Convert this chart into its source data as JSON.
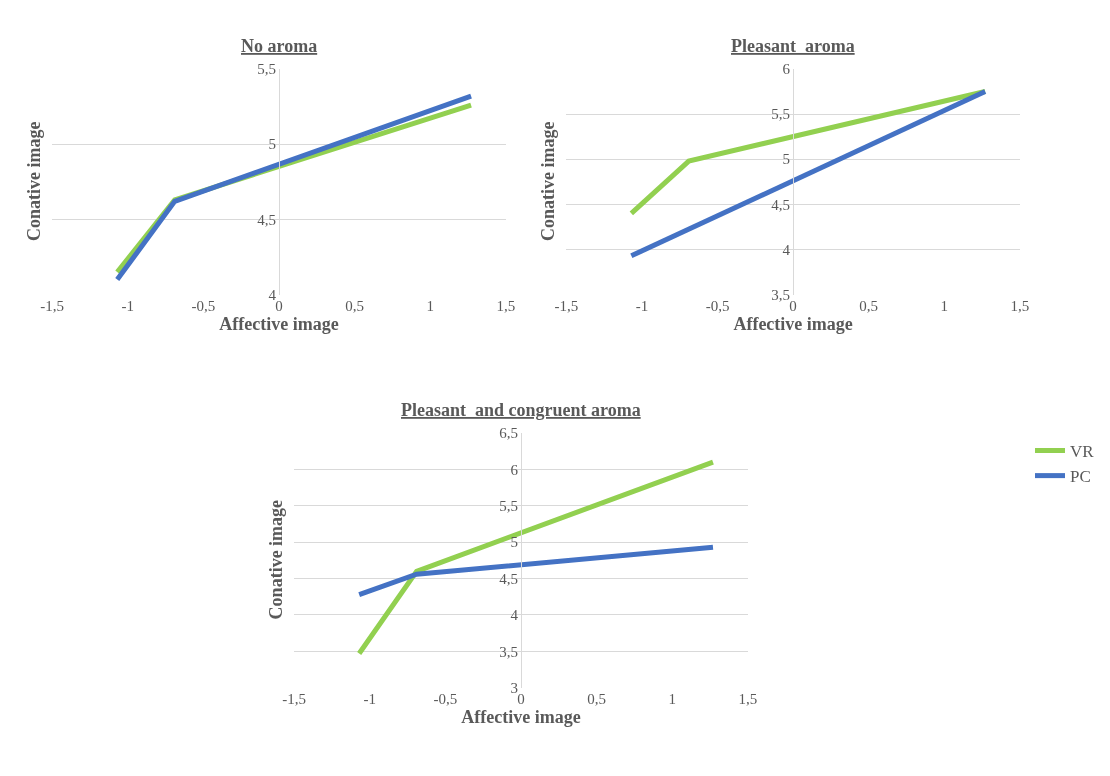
{
  "chart_data": [
    {
      "type": "line",
      "title": "No aroma",
      "xlabel": "Affective image",
      "ylabel": "Conative image",
      "grid": "y",
      "legend": false,
      "xlim": [
        -1.5,
        1.5
      ],
      "xticks": [
        {
          "value": -1.5,
          "label": "-1,5"
        },
        -1,
        {
          "value": -0.5,
          "label": "-0,5"
        },
        0,
        {
          "value": 0.5,
          "label": "0,5"
        },
        1,
        {
          "value": 1.5,
          "label": "1,5"
        }
      ],
      "ylim": [
        4,
        5.5
      ],
      "yticks": [
        4,
        {
          "value": 4.5,
          "label": "4,5"
        },
        5,
        {
          "value": 5.5,
          "label": "5,5"
        }
      ],
      "series": [
        {
          "color": "#92d050",
          "x": [
            -1.07,
            -0.69,
            1.27
          ],
          "values": [
            4.15,
            4.63,
            5.26
          ]
        },
        {
          "color": "#4472c4",
          "x": [
            -1.07,
            -0.69,
            1.27
          ],
          "values": [
            4.1,
            4.62,
            5.32
          ]
        }
      ]
    },
    {
      "type": "line",
      "title": "Pleasant  aroma",
      "xlabel": "Affective image",
      "ylabel": "Conative image",
      "grid": "y",
      "legend": false,
      "xlim": [
        -1.5,
        1.5
      ],
      "xticks": [
        {
          "value": -1.5,
          "label": "-1,5"
        },
        -1,
        {
          "value": -0.5,
          "label": "-0,5"
        },
        0,
        {
          "value": 0.5,
          "label": "0,5"
        },
        1,
        {
          "value": 1.5,
          "label": "1,5"
        }
      ],
      "ylim": [
        3.5,
        6
      ],
      "yticks": [
        {
          "value": 3.5,
          "label": "3,5"
        },
        4,
        {
          "value": 4.5,
          "label": "4,5"
        },
        5,
        {
          "value": 5.5,
          "label": "5,5"
        },
        6
      ],
      "series": [
        {
          "color": "#92d050",
          "x": [
            -1.07,
            -0.69,
            1.27
          ],
          "values": [
            4.4,
            4.98,
            5.75
          ]
        },
        {
          "color": "#4472c4",
          "x": [
            -1.07,
            1.27
          ],
          "values": [
            3.93,
            5.75
          ]
        }
      ]
    },
    {
      "type": "line",
      "title": "Pleasant  and congruent aroma",
      "xlabel": "Affective image",
      "ylabel": "Conative image",
      "grid": "y",
      "legend": "right",
      "xlim": [
        -1.5,
        1.5
      ],
      "xticks": [
        {
          "value": -1.5,
          "label": "-1,5"
        },
        -1,
        {
          "value": -0.5,
          "label": "-0,5"
        },
        0,
        {
          "value": 0.5,
          "label": "0,5"
        },
        1,
        {
          "value": 1.5,
          "label": "1,5"
        }
      ],
      "ylim": [
        3,
        6.5
      ],
      "yticks": [
        3,
        {
          "value": 3.5,
          "label": "3,5"
        },
        4,
        {
          "value": 4.5,
          "label": "4,5"
        },
        5,
        {
          "value": 5.5,
          "label": "5,5"
        },
        6,
        {
          "value": 6.5,
          "label": "6,5"
        }
      ],
      "series": [
        {
          "name": "VR",
          "color": "#92d050",
          "x": [
            -1.07,
            -0.69,
            1.27
          ],
          "values": [
            3.47,
            4.6,
            6.1
          ]
        },
        {
          "name": "PC",
          "color": "#4472c4",
          "x": [
            -1.07,
            -0.69,
            1.27
          ],
          "values": [
            4.28,
            4.56,
            4.93
          ]
        }
      ]
    }
  ]
}
